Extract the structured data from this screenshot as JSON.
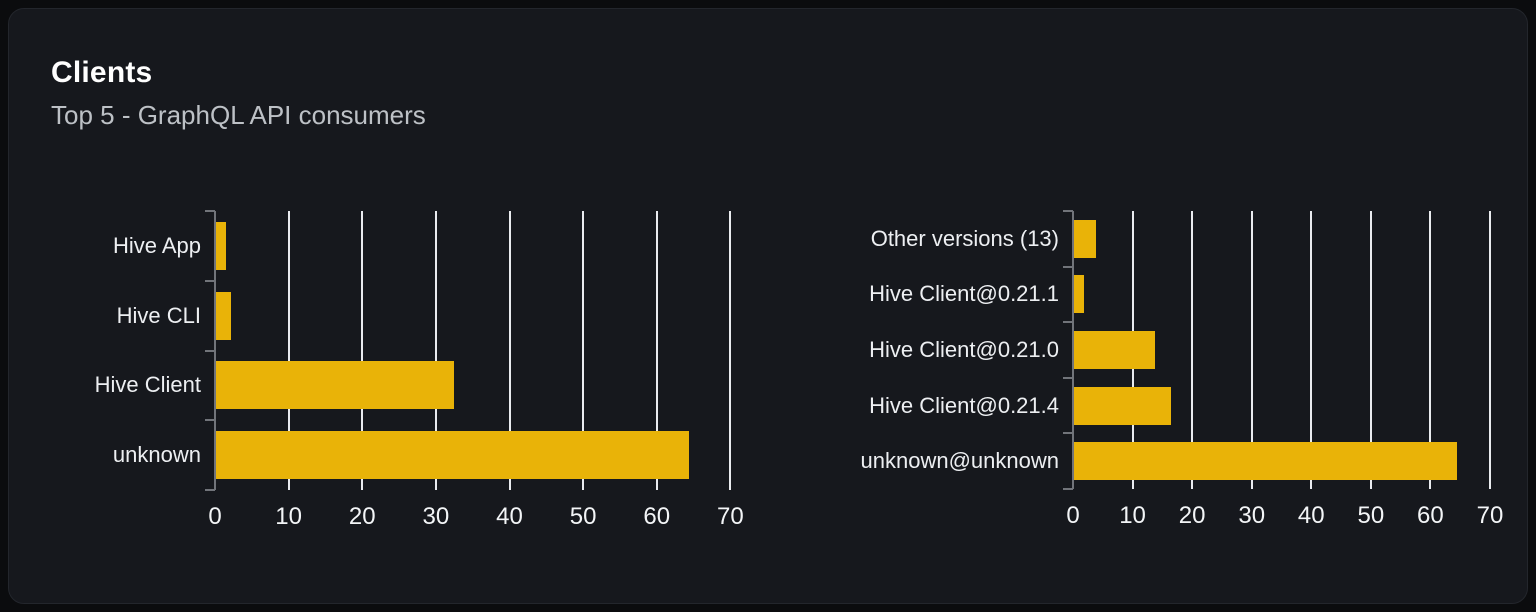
{
  "header": {
    "title": "Clients",
    "subtitle": "Top 5 - GraphQL API consumers"
  },
  "colors": {
    "page_bg": "#0b0c0e",
    "card_bg": "#16181d",
    "card_border": "#23262c",
    "title": "#ffffff",
    "subtitle": "#bdc1c6",
    "label": "#edeff2",
    "ticklabel": "#f3f5f7",
    "gridline": "#e9ebef",
    "axis": "#71747a",
    "bar": "#e9b308"
  },
  "chart_data": [
    {
      "type": "bar",
      "orientation": "horizontal",
      "categories": [
        "Hive App",
        "Hive CLI",
        "Hive Client",
        "unknown"
      ],
      "values": [
        1.4,
        2,
        32.3,
        64.3
      ],
      "xlim": [
        0,
        70
      ],
      "xticks": [
        0,
        10,
        20,
        30,
        40,
        50,
        60,
        70
      ],
      "grid": "vertical",
      "legend": "none",
      "bar_color": "#e9b308"
    },
    {
      "type": "bar",
      "orientation": "horizontal",
      "categories": [
        "Other versions (13)",
        "Hive Client@0.21.1",
        "Hive Client@0.21.0",
        "Hive Client@0.21.4",
        "unknown@unknown"
      ],
      "values": [
        3.7,
        1.6,
        13.6,
        16.3,
        64.3
      ],
      "xlim": [
        0,
        70
      ],
      "xticks": [
        0,
        10,
        20,
        30,
        40,
        50,
        60,
        70
      ],
      "grid": "vertical",
      "legend": "none",
      "bar_color": "#e9b308"
    }
  ]
}
